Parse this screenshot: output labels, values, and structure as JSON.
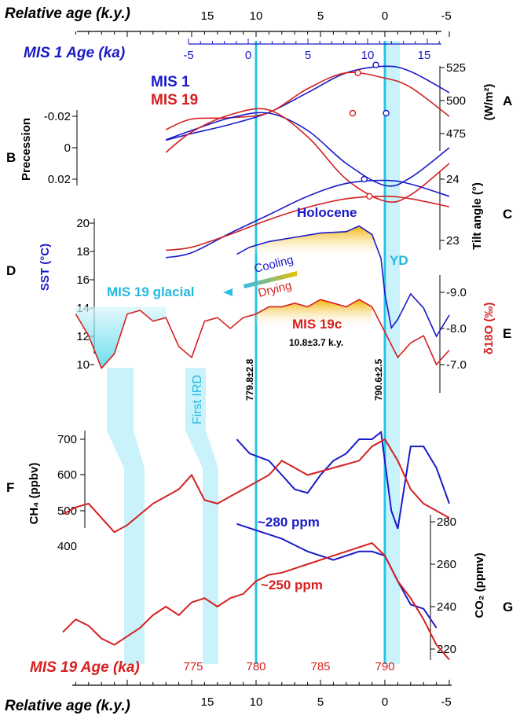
{
  "chart_data": [
    {
      "panel": "header",
      "type": "axis",
      "title": "Relative age (k.y.)",
      "ticks": [
        "15",
        "10",
        "5",
        "0",
        "-5"
      ],
      "secondary_title": "MIS 1 Age (ka)",
      "secondary_ticks": [
        "-5",
        "0",
        "5",
        "10",
        "15"
      ]
    },
    {
      "panel": "A",
      "type": "line",
      "label": "A",
      "ylabel": "(W/m²)",
      "y_ticks": [
        "525",
        "500",
        "475"
      ],
      "series": [
        {
          "name": "MIS 1",
          "color": "#1a1ac8",
          "x": [
            17,
            15,
            12,
            9,
            6,
            3,
            0,
            -2,
            -5
          ],
          "y": [
            470,
            475,
            482,
            491,
            506,
            521,
            526,
            522,
            506
          ]
        },
        {
          "name": "MIS 19",
          "color": "#d42020",
          "x": [
            17,
            15,
            12,
            9,
            6,
            3,
            0,
            -2,
            -5
          ],
          "y": [
            478,
            486,
            487,
            491,
            509,
            521,
            517,
            510,
            488
          ]
        }
      ],
      "markers": [
        {
          "series": "MIS 1",
          "x": 0.7,
          "y": 527
        },
        {
          "series": "MIS 19",
          "x": 2.1,
          "y": 521
        }
      ]
    },
    {
      "panel": "B",
      "type": "line",
      "label": "B",
      "ylabel": "Precession",
      "y_ticks": [
        "-0.02",
        "0",
        "0.02"
      ],
      "series": [
        {
          "name": "MIS 1",
          "color": "#1a1ac8",
          "x": [
            17,
            15,
            12,
            9,
            6,
            3,
            0,
            -2,
            -5
          ],
          "y": [
            -0.005,
            -0.011,
            -0.019,
            -0.022,
            -0.011,
            0.01,
            0.024,
            0.019,
            0.0
          ]
        },
        {
          "name": "MIS 19",
          "color": "#d42020",
          "x": [
            17,
            15,
            12,
            9,
            6,
            3,
            0,
            -2,
            -5
          ],
          "y": [
            0.003,
            -0.01,
            -0.021,
            -0.024,
            -0.007,
            0.02,
            0.034,
            0.03,
            0.01
          ]
        }
      ],
      "markers": [
        {
          "series": "MIS 19",
          "x": 2.5,
          "y": -0.022
        },
        {
          "series": "MIS 1",
          "x": -0.1,
          "y": -0.022
        }
      ]
    },
    {
      "panel": "C",
      "type": "line",
      "label": "C",
      "ylabel": "Tilt angle (°)",
      "y_ticks": [
        "24",
        "23"
      ],
      "series": [
        {
          "name": "MIS 1",
          "color": "#1a1ac8",
          "x": [
            17,
            15,
            12,
            9,
            6,
            3,
            0,
            -2,
            -5
          ],
          "y": [
            22.72,
            22.8,
            23.12,
            23.42,
            23.72,
            23.93,
            23.98,
            23.92,
            23.72
          ]
        },
        {
          "name": "MIS 19",
          "color": "#d42020",
          "x": [
            17,
            15,
            12,
            9,
            6,
            3,
            0,
            -2,
            -5
          ],
          "y": [
            22.84,
            22.89,
            23.1,
            23.34,
            23.54,
            23.68,
            23.72,
            23.68,
            23.55
          ]
        }
      ],
      "markers": [
        {
          "series": "MIS 1",
          "x": 1.6,
          "y": 24.0
        },
        {
          "series": "MIS 19",
          "x": 1.2,
          "y": 23.72
        }
      ]
    },
    {
      "panel": "D",
      "type": "line",
      "label": "D",
      "ylabel": "SST (°C)",
      "y_ticks": [
        "20",
        "18",
        "16",
        "14",
        "12",
        "10"
      ],
      "series": [
        {
          "name": "Holocene",
          "color": "#1a1ac8",
          "x": [
            11.5,
            10.5,
            9,
            7,
            5,
            3,
            2,
            1,
            0.3,
            0,
            -0.5,
            -1,
            -2,
            -3,
            -4,
            -5
          ],
          "y": [
            17.8,
            18.3,
            18.7,
            19.0,
            19.3,
            19.4,
            19.8,
            19.2,
            17.5,
            15.0,
            12.6,
            13.2,
            15.0,
            14.0,
            12.0,
            13.5
          ]
        }
      ],
      "annotations": [
        "Holocene",
        "YD",
        "Cooling",
        "Drying",
        "MIS 19 glacial"
      ]
    },
    {
      "panel": "E",
      "type": "line",
      "label": "E",
      "ylabel": "δ18O (‰)",
      "y_ticks": [
        "-9.0",
        "-8.0",
        "-7.0"
      ],
      "series": [
        {
          "name": "MIS 19",
          "color": "#d42020",
          "x": [
            24,
            23,
            22,
            21,
            20,
            19,
            18,
            17,
            16,
            15,
            14,
            13,
            12,
            11,
            10,
            9,
            8,
            7,
            6,
            5,
            4,
            3,
            2,
            1,
            0,
            -1,
            -2,
            -3,
            -4,
            -5
          ],
          "y": [
            -8.4,
            -7.8,
            -6.9,
            -7.3,
            -8.4,
            -8.5,
            -8.2,
            -8.3,
            -7.5,
            -7.2,
            -8.2,
            -8.3,
            -8.0,
            -8.3,
            -8.4,
            -8.6,
            -8.6,
            -8.7,
            -8.6,
            -8.8,
            -8.7,
            -8.6,
            -8.8,
            -8.6,
            -7.9,
            -7.2,
            -7.6,
            -7.8,
            -7.0,
            -7.4
          ]
        }
      ],
      "annotations": [
        "MIS 19c",
        "10.8±3.7 k.y.",
        "779.8±2.8",
        "790.6±2.5",
        "First IRD"
      ]
    },
    {
      "panel": "F",
      "type": "line",
      "label": "F",
      "ylabel": "CH₄ (ppbv)",
      "y_ticks": [
        "700",
        "600",
        "500",
        "400"
      ],
      "series": [
        {
          "name": "MIS 1",
          "color": "#1a1ac8",
          "x": [
            11.5,
            10.5,
            9,
            8,
            7,
            6,
            5,
            4,
            3,
            2,
            1,
            0.3,
            -0.5,
            -1,
            -2,
            -3,
            -4,
            -5
          ],
          "y": [
            700,
            660,
            640,
            600,
            560,
            550,
            600,
            640,
            660,
            700,
            700,
            720,
            500,
            450,
            680,
            680,
            620,
            520
          ]
        },
        {
          "name": "MIS 19",
          "color": "#d42020",
          "x": [
            25,
            24,
            23,
            22,
            21,
            20,
            19,
            18,
            17,
            16,
            15,
            14,
            13,
            12,
            11,
            10,
            9,
            8,
            7,
            6,
            5,
            4,
            3,
            2,
            1,
            0,
            -1,
            -2,
            -3,
            -4,
            -5
          ],
          "y": [
            490,
            510,
            520,
            480,
            440,
            460,
            490,
            520,
            540,
            560,
            600,
            530,
            520,
            540,
            560,
            580,
            600,
            640,
            620,
            600,
            610,
            620,
            630,
            640,
            680,
            700,
            640,
            560,
            520,
            500,
            480
          ]
        }
      ]
    },
    {
      "panel": "G",
      "type": "line",
      "label": "G",
      "ylabel": "CO₂ (ppmv)",
      "y_ticks": [
        "280",
        "260",
        "240",
        "220"
      ],
      "series": [
        {
          "name": "MIS 1",
          "color": "#1a1ac8",
          "x": [
            11.5,
            10,
            8,
            6,
            4,
            2,
            1,
            0,
            -1,
            -2,
            -3,
            -4
          ],
          "y": [
            279,
            276,
            272,
            266,
            262,
            266,
            266,
            264,
            252,
            241,
            239,
            230
          ]
        },
        {
          "name": "MIS 19",
          "color": "#d42020",
          "x": [
            25,
            24,
            23,
            22,
            21,
            20,
            19,
            18,
            17,
            16,
            15,
            14,
            13,
            12,
            11,
            10,
            9,
            8,
            7,
            6,
            5,
            4,
            3,
            2,
            1,
            0,
            -1,
            -2,
            -3,
            -4,
            -5
          ],
          "y": [
            228,
            234,
            231,
            225,
            222,
            226,
            230,
            236,
            240,
            236,
            242,
            244,
            240,
            244,
            246,
            252,
            255,
            256,
            258,
            260,
            262,
            264,
            266,
            268,
            270,
            264,
            252,
            244,
            234,
            222,
            215
          ]
        }
      ],
      "annotations": [
        "~280 ppm",
        "~250 ppm"
      ]
    },
    {
      "panel": "footer",
      "type": "axis",
      "title": "Relative age (k.y.)",
      "ticks": [
        "15",
        "10",
        "5",
        "0",
        "-5"
      ],
      "secondary_title": "MIS 19 Age (ka)",
      "secondary_ticks": [
        "775",
        "780",
        "785",
        "790"
      ]
    }
  ]
}
